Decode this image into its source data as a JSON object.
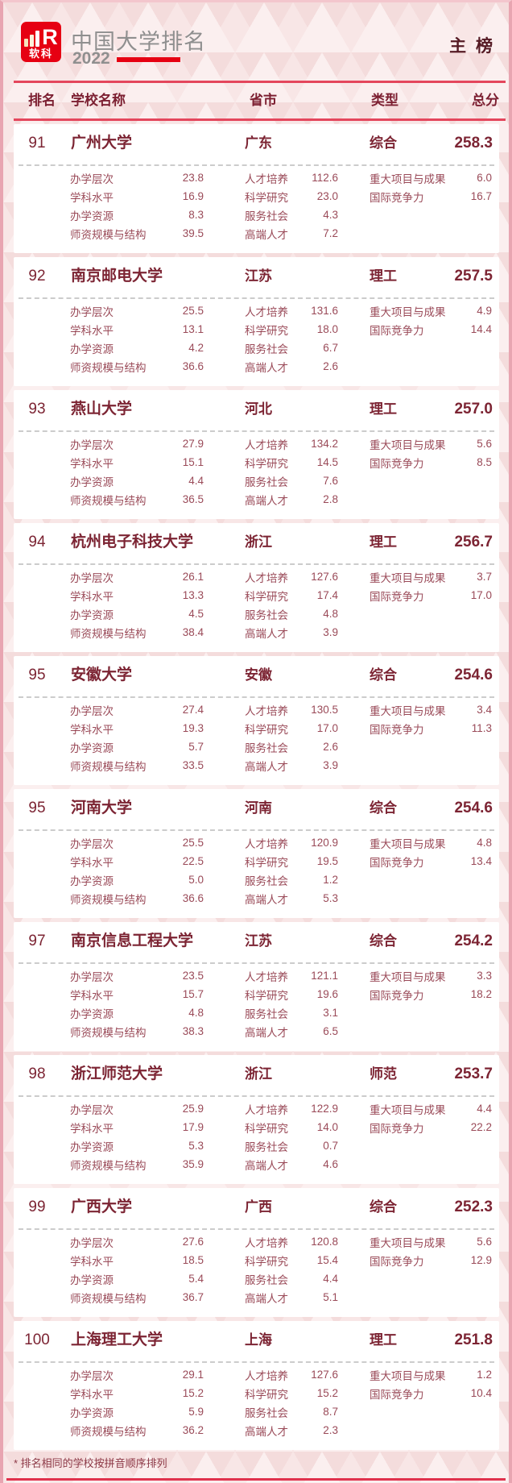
{
  "header": {
    "logo_text": "软科",
    "title": "中国大学排名",
    "year": "2022",
    "board": "主 榜"
  },
  "columns": {
    "rank": "排名",
    "name": "学校名称",
    "province": "省市",
    "type": "类型",
    "score": "总分"
  },
  "metric_labels": {
    "col1": [
      "办学层次",
      "学科水平",
      "办学资源",
      "师资规模与结构"
    ],
    "col2": [
      "人才培养",
      "科学研究",
      "服务社会",
      "高端人才"
    ],
    "col3": [
      "重大项目与成果",
      "国际竞争力"
    ]
  },
  "entries": [
    {
      "rank": "91",
      "name": "广州大学",
      "province": "广东",
      "type": "综合",
      "score": "258.3",
      "col1": [
        "23.8",
        "16.9",
        "8.3",
        "39.5"
      ],
      "col2": [
        "112.6",
        "23.0",
        "4.3",
        "7.2"
      ],
      "col3": [
        "6.0",
        "16.7"
      ]
    },
    {
      "rank": "92",
      "name": "南京邮电大学",
      "province": "江苏",
      "type": "理工",
      "score": "257.5",
      "col1": [
        "25.5",
        "13.1",
        "4.2",
        "36.6"
      ],
      "col2": [
        "131.6",
        "18.0",
        "6.7",
        "2.6"
      ],
      "col3": [
        "4.9",
        "14.4"
      ]
    },
    {
      "rank": "93",
      "name": "燕山大学",
      "province": "河北",
      "type": "理工",
      "score": "257.0",
      "col1": [
        "27.9",
        "15.1",
        "4.4",
        "36.5"
      ],
      "col2": [
        "134.2",
        "14.5",
        "7.6",
        "2.8"
      ],
      "col3": [
        "5.6",
        "8.5"
      ]
    },
    {
      "rank": "94",
      "name": "杭州电子科技大学",
      "province": "浙江",
      "type": "理工",
      "score": "256.7",
      "col1": [
        "26.1",
        "13.3",
        "4.5",
        "38.4"
      ],
      "col2": [
        "127.6",
        "17.4",
        "4.8",
        "3.9"
      ],
      "col3": [
        "3.7",
        "17.0"
      ]
    },
    {
      "rank": "95",
      "name": "安徽大学",
      "province": "安徽",
      "type": "综合",
      "score": "254.6",
      "col1": [
        "27.4",
        "19.3",
        "5.7",
        "33.5"
      ],
      "col2": [
        "130.5",
        "17.0",
        "2.6",
        "3.9"
      ],
      "col3": [
        "3.4",
        "11.3"
      ]
    },
    {
      "rank": "95",
      "name": "河南大学",
      "province": "河南",
      "type": "综合",
      "score": "254.6",
      "col1": [
        "25.5",
        "22.5",
        "5.0",
        "36.6"
      ],
      "col2": [
        "120.9",
        "19.5",
        "1.2",
        "5.3"
      ],
      "col3": [
        "4.8",
        "13.4"
      ]
    },
    {
      "rank": "97",
      "name": "南京信息工程大学",
      "province": "江苏",
      "type": "综合",
      "score": "254.2",
      "col1": [
        "23.5",
        "15.7",
        "4.8",
        "38.3"
      ],
      "col2": [
        "121.1",
        "19.6",
        "3.1",
        "6.5"
      ],
      "col3": [
        "3.3",
        "18.2"
      ]
    },
    {
      "rank": "98",
      "name": "浙江师范大学",
      "province": "浙江",
      "type": "师范",
      "score": "253.7",
      "col1": [
        "25.9",
        "17.9",
        "5.3",
        "35.9"
      ],
      "col2": [
        "122.9",
        "14.0",
        "0.7",
        "4.6"
      ],
      "col3": [
        "4.4",
        "22.2"
      ]
    },
    {
      "rank": "99",
      "name": "广西大学",
      "province": "广西",
      "type": "综合",
      "score": "252.3",
      "col1": [
        "27.6",
        "18.5",
        "5.4",
        "36.7"
      ],
      "col2": [
        "120.8",
        "15.4",
        "4.4",
        "5.1"
      ],
      "col3": [
        "5.6",
        "12.9"
      ]
    },
    {
      "rank": "100",
      "name": "上海理工大学",
      "province": "上海",
      "type": "理工",
      "score": "251.8",
      "col1": [
        "29.1",
        "15.2",
        "5.9",
        "36.2"
      ],
      "col2": [
        "127.6",
        "15.2",
        "8.7",
        "2.3"
      ],
      "col3": [
        "1.2",
        "10.4"
      ]
    }
  ],
  "footnote": "* 排名相同的学校按拼音顺序排列",
  "colors": {
    "logo_red": "#e60012",
    "header_line_red": "#e4465c",
    "bottom_line_red": "#e0324d",
    "dark_maroon": "#551a24",
    "row_text_maroon": "#7c2433",
    "metric_text_maroon": "#9a4a58",
    "title_gray": "#8f8f8f",
    "background_pink": "#f8e6e6",
    "card_white": "#ffffff"
  },
  "chart_data": {
    "type": "table",
    "title": "中国大学排名 2022 主榜",
    "columns": [
      "排名",
      "学校名称",
      "省市",
      "类型",
      "总分"
    ],
    "rows": [
      [
        "91",
        "广州大学",
        "广东",
        "综合",
        258.3
      ],
      [
        "92",
        "南京邮电大学",
        "江苏",
        "理工",
        257.5
      ],
      [
        "93",
        "燕山大学",
        "河北",
        "理工",
        257.0
      ],
      [
        "94",
        "杭州电子科技大学",
        "浙江",
        "理工",
        256.7
      ],
      [
        "95",
        "安徽大学",
        "安徽",
        "综合",
        254.6
      ],
      [
        "95",
        "河南大学",
        "河南",
        "综合",
        254.6
      ],
      [
        "97",
        "南京信息工程大学",
        "江苏",
        "综合",
        254.2
      ],
      [
        "98",
        "浙江师范大学",
        "浙江",
        "师范",
        253.7
      ],
      [
        "99",
        "广西大学",
        "广西",
        "综合",
        252.3
      ],
      [
        "100",
        "上海理工大学",
        "上海",
        "理工",
        251.8
      ]
    ]
  }
}
